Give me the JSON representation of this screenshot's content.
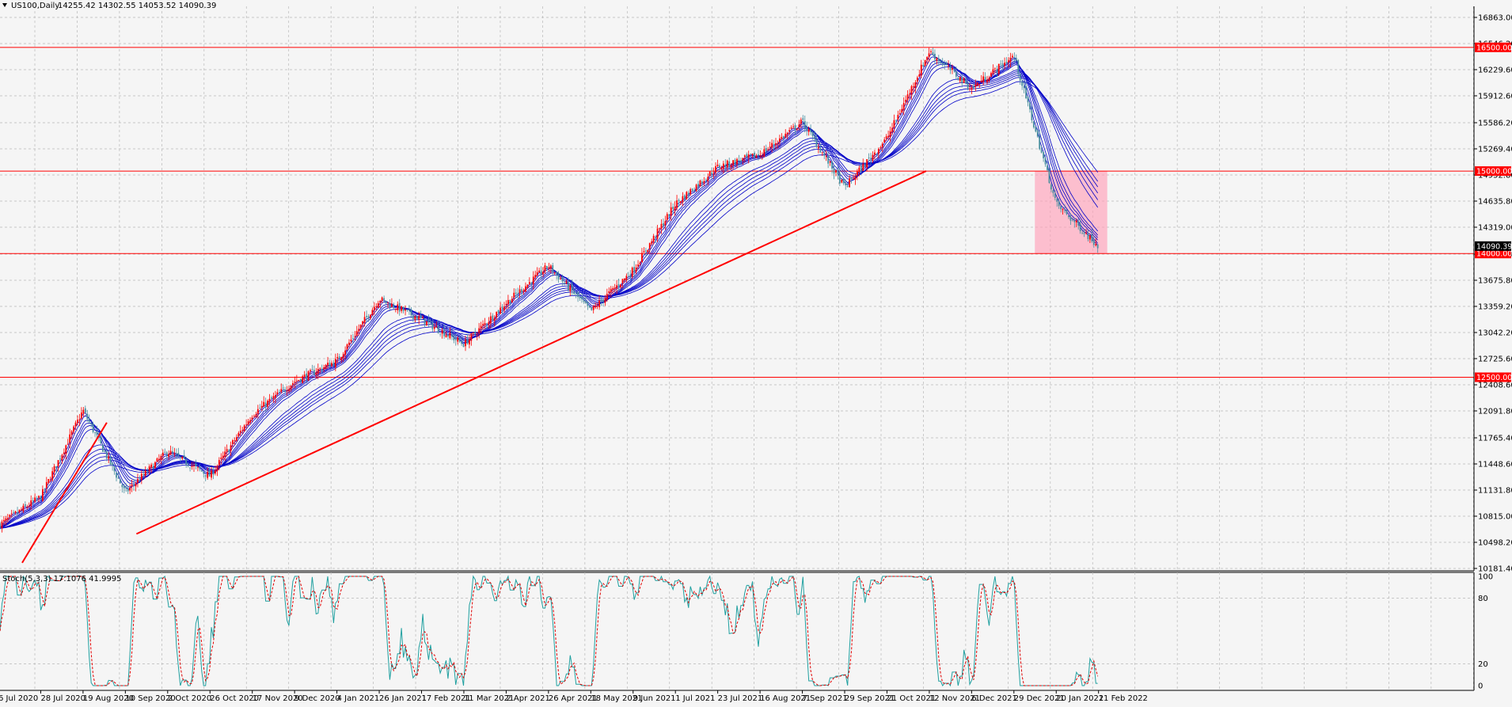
{
  "header": {
    "symbol": "US100,Daily",
    "ohlc": "14255.42 14302.55 14053.52 14090.39"
  },
  "stoch_header": "Stoch(5,3,3) 17.1076 41.9995",
  "colors": {
    "background": "#f5f5f5",
    "grid": "#b8b8b8",
    "bull": "#ff0000",
    "bear": "#4a8fa0",
    "ma": "#0000c8",
    "level": "#ff0000",
    "trend": "#ff0000",
    "zone": "#ff9fb8",
    "stoch_main": "#20a0a0",
    "stoch_signal": "#e00000"
  },
  "chart_data": [
    {
      "type": "candlestick",
      "price_axis_labels": [
        "16863.00",
        "16546.20",
        "16229.60",
        "15912.60",
        "15586.20",
        "15269.40",
        "14952.80",
        "14635.80",
        "14319.00",
        "13992.40",
        "13675.80",
        "13359.20",
        "13042.20",
        "12725.60",
        "12408.60",
        "12091.80",
        "11765.40",
        "11448.60",
        "11131.80",
        "10815.00",
        "10498.20",
        "10181.40"
      ],
      "ylim": [
        10181.4,
        16863.0
      ],
      "date_labels": [
        "6 Jul 2020",
        "28 Jul 2020",
        "19 Aug 2020",
        "10 Sep 2020",
        "2 Oct 2020",
        "26 Oct 2020",
        "17 Nov 2020",
        "9 Dec 2020",
        "4 Jan 2021",
        "26 Jan 2021",
        "17 Feb 2021",
        "11 Mar 2021",
        "2 Apr 2021",
        "26 Apr 2021",
        "18 May 2021",
        "9 Jun 2021",
        "1 Jul 2021",
        "23 Jul 2021",
        "16 Aug 2021",
        "7 Sep 2021",
        "29 Sep 2021",
        "21 Oct 2021",
        "12 Nov 2021",
        "6 Dec 2021",
        "29 Dec 2021",
        "20 Jan 2022",
        "11 Feb 2022"
      ],
      "levels": [
        {
          "value": 16500.0,
          "label": "16500.00"
        },
        {
          "value": 15000.0,
          "label": "15000.00"
        },
        {
          "value": 14000.0,
          "label": "14000.00"
        },
        {
          "value": 12500.0,
          "label": "12500.00"
        }
      ],
      "current_price": {
        "value": 14090.39,
        "label": "14090.39"
      },
      "trendlines": [
        {
          "from": [
            "6 Jul 2020",
            10250
          ],
          "to": [
            "19 Aug 2020",
            11950
          ]
        },
        {
          "from": [
            "10 Sep 2020",
            10600
          ],
          "to": [
            "12 Nov 2021",
            15000
          ]
        }
      ],
      "zone": {
        "from": "20 Jan 2022",
        "to": "11 Feb 2022",
        "y": [
          14000,
          15000
        ]
      },
      "price_path": [
        [
          "6 Jul 2020",
          10700
        ],
        [
          "28 Jul 2020",
          11050
        ],
        [
          "19 Aug 2020",
          12100
        ],
        [
          "10 Sep 2020",
          11100
        ],
        [
          "2 Oct 2020",
          11600
        ],
        [
          "26 Oct 2020",
          11300
        ],
        [
          "17 Nov 2020",
          12050
        ],
        [
          "9 Dec 2020",
          12450
        ],
        [
          "4 Jan 2021",
          12700
        ],
        [
          "26 Jan 2021",
          13450
        ],
        [
          "17 Feb 2021",
          13200
        ],
        [
          "11 Mar 2021",
          12900
        ],
        [
          "2 Apr 2021",
          13400
        ],
        [
          "26 Apr 2021",
          13850
        ],
        [
          "18 May 2021",
          13300
        ],
        [
          "9 Jun 2021",
          13800
        ],
        [
          "1 Jul 2021",
          14600
        ],
        [
          "23 Jul 2021",
          15050
        ],
        [
          "16 Aug 2021",
          15200
        ],
        [
          "7 Sep 2021",
          15600
        ],
        [
          "29 Sep 2021",
          14800
        ],
        [
          "21 Oct 2021",
          15400
        ],
        [
          "12 Nov 2021",
          16450
        ],
        [
          "6 Dec 2021",
          16000
        ],
        [
          "29 Dec 2021",
          16400
        ],
        [
          "20 Jan 2022",
          14600
        ],
        [
          "11 Feb 2022",
          14090
        ]
      ]
    },
    {
      "type": "line",
      "title": "Stoch(5,3,3)",
      "axis_labels": [
        "100",
        "80",
        "20",
        "0"
      ],
      "ylim": [
        0,
        100
      ],
      "levels": [
        80,
        20
      ]
    }
  ]
}
